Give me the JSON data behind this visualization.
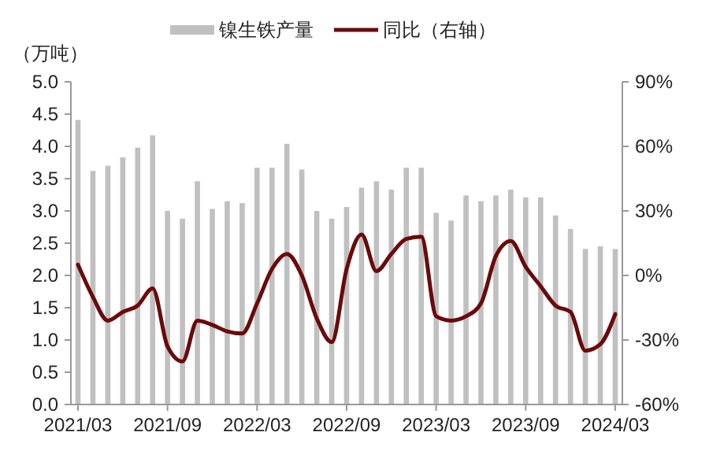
{
  "chart_data": {
    "type": "bar",
    "ylabel": "（万吨）",
    "categories": [
      "2021/03",
      null,
      null,
      null,
      null,
      null,
      "2021/09",
      null,
      null,
      null,
      null,
      null,
      "2022/03",
      null,
      null,
      null,
      null,
      null,
      "2022/09",
      null,
      null,
      null,
      null,
      null,
      "2023/03",
      null,
      null,
      null,
      null,
      null,
      "2023/09",
      null,
      null,
      null,
      null,
      null,
      "2024/03"
    ],
    "series": [
      {
        "name": "镍生铁产量",
        "color": "#c0c0c0",
        "values": [
          4.41,
          3.62,
          3.7,
          3.83,
          3.98,
          4.17,
          3.0,
          2.88,
          3.46,
          3.03,
          3.15,
          3.12,
          3.67,
          3.67,
          4.04,
          3.64,
          3.0,
          2.88,
          3.06,
          3.36,
          3.46,
          3.33,
          3.67,
          3.67,
          2.97,
          2.85,
          3.24,
          3.15,
          3.24,
          3.33,
          3.21,
          3.21,
          2.93,
          2.72,
          2.41,
          2.45,
          2.41
        ]
      },
      {
        "name": "同比（右轴）",
        "type": "line",
        "axis": "y2",
        "color": "#6b0a0a",
        "values": [
          5,
          -10,
          -21,
          -17,
          -14,
          -6,
          -33,
          -40,
          -21,
          -23,
          -26,
          -27,
          -13,
          3,
          10,
          0,
          -20,
          -31,
          3,
          19,
          2,
          10,
          17,
          18,
          -19,
          -21,
          -19,
          -13,
          9,
          16,
          4,
          -5,
          -14,
          -17,
          -35,
          -32,
          -18
        ]
      }
    ],
    "ylim": [
      0,
      5
    ],
    "yticks": [
      {
        "value": 0,
        "label": "0.0"
      },
      {
        "value": 0.5,
        "label": "0.5"
      },
      {
        "value": 1,
        "label": "1.0"
      },
      {
        "value": 1.5,
        "label": "1.5"
      },
      {
        "value": 2,
        "label": "2.0"
      },
      {
        "value": 2.5,
        "label": "2.5"
      },
      {
        "value": 3,
        "label": "3.0"
      },
      {
        "value": 3.5,
        "label": "3.5"
      },
      {
        "value": 4,
        "label": "4.0"
      },
      {
        "value": 4.5,
        "label": "4.5"
      },
      {
        "value": 5,
        "label": "5.0"
      }
    ],
    "y2lim": [
      -60,
      90
    ],
    "y2ticks": [
      {
        "value": -60,
        "label": "-60%"
      },
      {
        "value": -30,
        "label": "-30%"
      },
      {
        "value": 0,
        "label": "0%"
      },
      {
        "value": 30,
        "label": "30%"
      },
      {
        "value": 60,
        "label": "60%"
      },
      {
        "value": 90,
        "label": "90%"
      }
    ],
    "grid": false,
    "legend": "top"
  }
}
